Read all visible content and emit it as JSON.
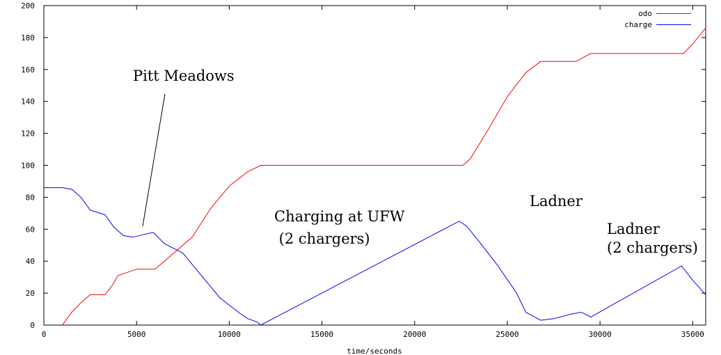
{
  "chart_data": {
    "type": "line",
    "xlabel": "time/seconds",
    "ylabel": "",
    "xlim": [
      0,
      35700
    ],
    "ylim": [
      0,
      200
    ],
    "xticks": [
      0,
      5000,
      10000,
      15000,
      20000,
      25000,
      30000,
      35000
    ],
    "yticks": [
      0,
      20,
      40,
      60,
      80,
      100,
      120,
      140,
      160,
      180,
      200
    ],
    "grid": false,
    "legend_position": "top-right",
    "series": [
      {
        "name": "odo",
        "color": "#ff0000",
        "x": [
          1000,
          1500,
          2000,
          2500,
          3300,
          3700,
          4000,
          4500,
          5000,
          6000,
          7000,
          7500,
          8000,
          9000,
          10000,
          11000,
          11700,
          22000,
          22600,
          23000,
          24000,
          25000,
          26000,
          26800,
          28000,
          28700,
          29500,
          34500,
          35000,
          35700
        ],
        "values": [
          0,
          8,
          14,
          19,
          19,
          25,
          31,
          33,
          35,
          35,
          45,
          50,
          55,
          73,
          87,
          96,
          100,
          100,
          100,
          104,
          123,
          143,
          158,
          165,
          165,
          165,
          170,
          170,
          176,
          186
        ]
      },
      {
        "name": "charge",
        "color": "#0000ff",
        "x": [
          0,
          1000,
          1500,
          2000,
          2500,
          3300,
          3800,
          4300,
          4800,
          5500,
          5900,
          6500,
          7500,
          8500,
          9500,
          10500,
          11000,
          11500,
          11700,
          22400,
          22800,
          23500,
          24500,
          25500,
          26000,
          26800,
          27500,
          28500,
          29000,
          29500,
          34400,
          35000,
          35700
        ],
        "values": [
          86,
          86,
          85,
          80,
          72,
          69,
          61,
          56,
          55,
          57,
          58,
          51,
          45,
          31,
          17,
          8,
          4,
          2,
          0,
          65,
          62,
          52,
          37,
          20,
          8,
          3,
          4,
          7,
          8,
          5,
          37,
          28,
          19
        ]
      }
    ],
    "annotations": [
      {
        "text": "Pitt Meadows"
      },
      {
        "text": "Charging at UFW"
      },
      {
        "text": " (2 chargers)"
      },
      {
        "text": "Ladner"
      },
      {
        "text": "Ladner"
      },
      {
        "text": "(2 chargers)"
      }
    ]
  }
}
